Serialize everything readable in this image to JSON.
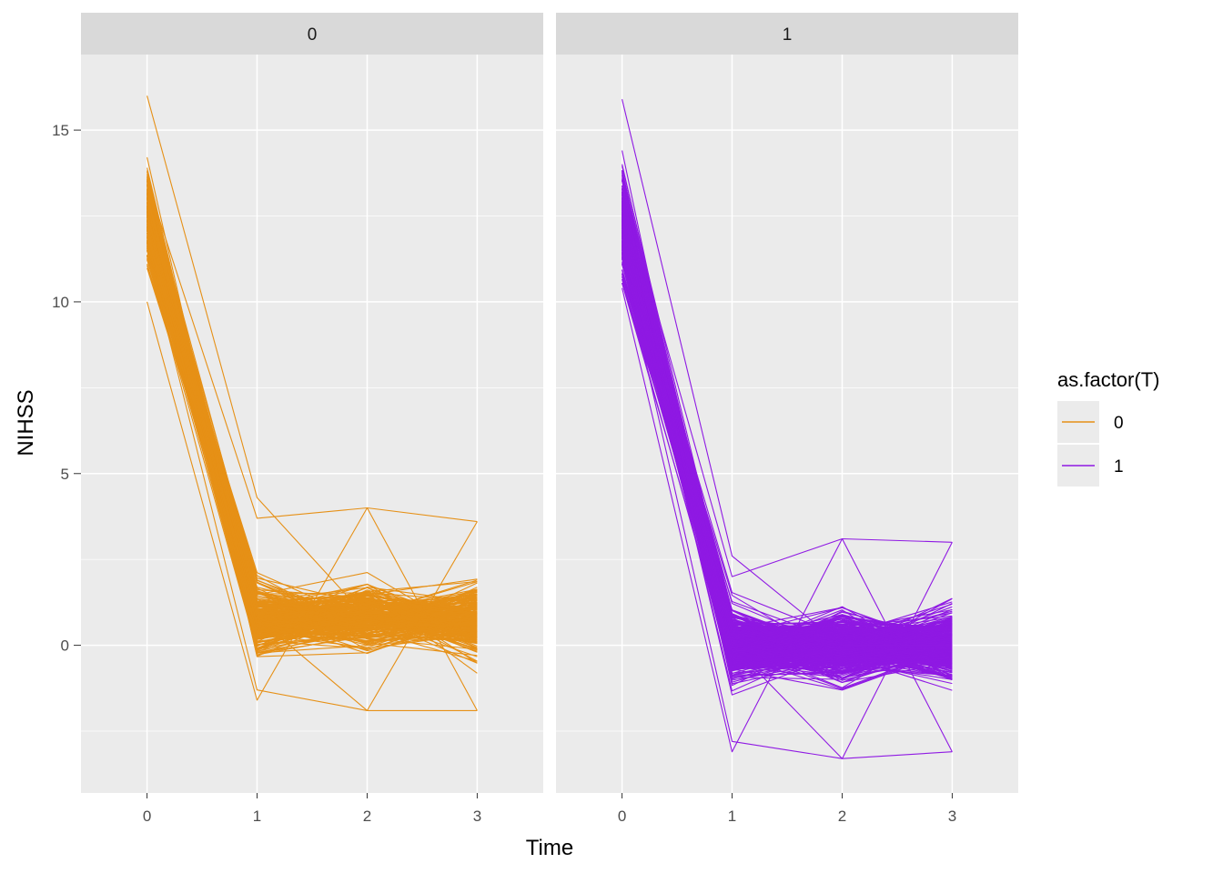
{
  "chart_data": {
    "type": "line",
    "facets": [
      {
        "label": "0",
        "series_name": "0",
        "color": "#E69016"
      },
      {
        "label": "1",
        "series_name": "1",
        "color": "#8F19E3"
      }
    ],
    "xlabel": "Time",
    "ylabel": "NIHSS",
    "x_ticks": [
      0,
      1,
      2,
      3
    ],
    "y_ticks": [
      0,
      5,
      10,
      15
    ],
    "xlim": [
      -0.6,
      3.6
    ],
    "ylim": [
      -4.3,
      17.2
    ],
    "grid": true,
    "legend": {
      "title": "as.factor(T)",
      "position": "right",
      "entries": [
        {
          "label": "0",
          "color": "#E69016"
        },
        {
          "label": "1",
          "color": "#8F19E3"
        }
      ]
    },
    "series": [
      {
        "name": "0",
        "x": [
          0,
          1,
          2,
          3
        ],
        "mean": [
          12.5,
          0.8,
          0.8,
          0.7
        ],
        "min": [
          10.0,
          -1.6,
          -1.9,
          -1.9
        ],
        "max": [
          16.0,
          4.3,
          4.0,
          3.6
        ]
      },
      {
        "name": "1",
        "x": [
          0,
          1,
          2,
          3
        ],
        "mean": [
          12.3,
          0.0,
          0.0,
          0.0
        ],
        "min": [
          10.4,
          -3.1,
          -3.3,
          -3.1
        ],
        "max": [
          15.9,
          2.6,
          3.1,
          3.0
        ]
      }
    ]
  }
}
